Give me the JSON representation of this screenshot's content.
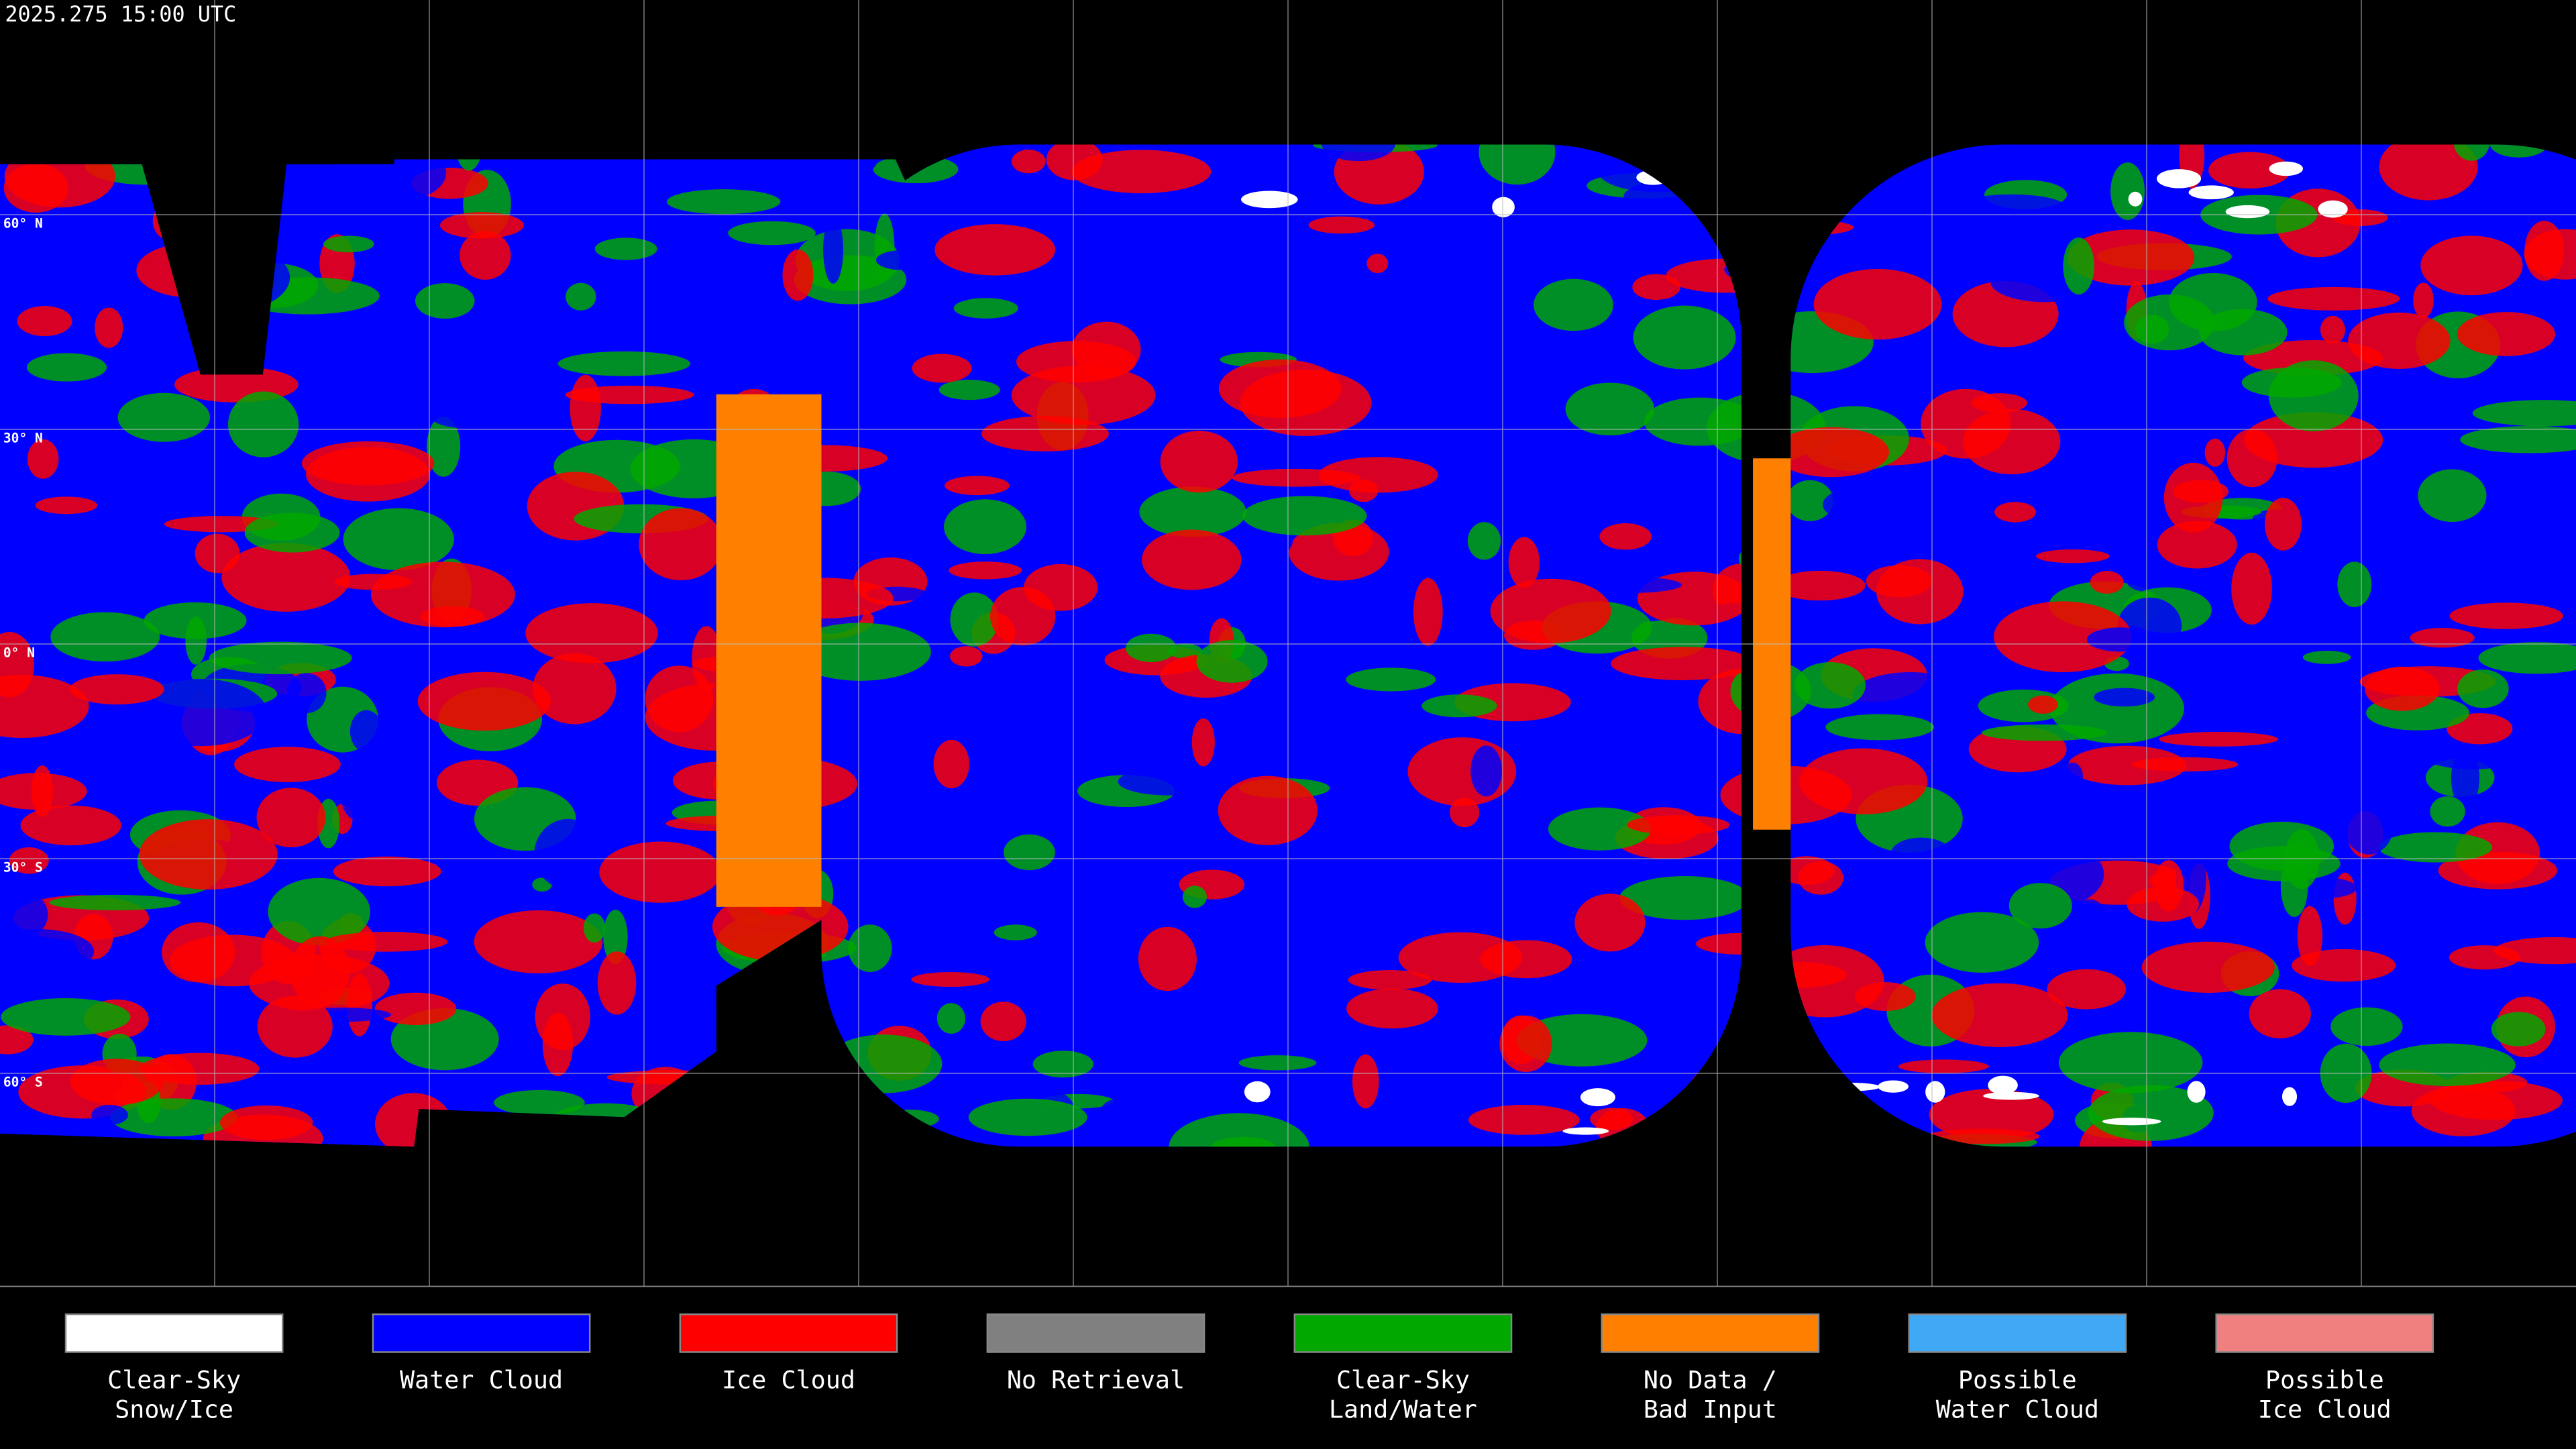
{
  "timestamp": "2025.275 15:00 UTC",
  "latitude_labels": [
    "60° N",
    "30° N",
    "0° N",
    "30° S",
    "60° S"
  ],
  "legend": {
    "items": [
      {
        "label": [
          "Clear-Sky",
          "Snow/Ice"
        ],
        "color": "#ffffff"
      },
      {
        "label": [
          "Water Cloud"
        ],
        "color": "#0000ff"
      },
      {
        "label": [
          "Ice Cloud"
        ],
        "color": "#ff0000"
      },
      {
        "label": [
          "No Retrieval"
        ],
        "color": "#808080"
      },
      {
        "label": [
          "Clear-Sky",
          "Land/Water"
        ],
        "color": "#00a800"
      },
      {
        "label": [
          "No Data /",
          "Bad Input"
        ],
        "color": "#ff8000"
      },
      {
        "label": [
          "Possible",
          "Water Cloud"
        ],
        "color": "#3fa9f5"
      },
      {
        "label": [
          "Possible",
          "Ice Cloud"
        ],
        "color": "#f08080"
      }
    ]
  }
}
